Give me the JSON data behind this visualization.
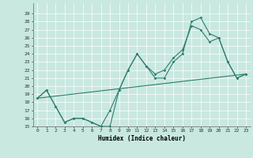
{
  "xlabel": "Humidex (Indice chaleur)",
  "xlim": [
    -0.5,
    23.5
  ],
  "ylim": [
    15,
    30
  ],
  "yticks": [
    15,
    16,
    17,
    18,
    19,
    20,
    21,
    22,
    23,
    24,
    25,
    26,
    27,
    28,
    29
  ],
  "xticks": [
    0,
    1,
    2,
    3,
    4,
    5,
    6,
    7,
    8,
    9,
    10,
    11,
    12,
    13,
    14,
    15,
    16,
    17,
    18,
    19,
    20,
    21,
    22,
    23
  ],
  "background_color": "#c8e8e0",
  "grid_color": "#ffffff",
  "line_color": "#2e7d6e",
  "series1_y": [
    18.5,
    19.5,
    17.5,
    15.5,
    16.0,
    16.0,
    15.5,
    15.0,
    15.0,
    19.5,
    22.0,
    24.0,
    22.5,
    21.0,
    21.0,
    23.0,
    24.0,
    28.0,
    28.5,
    26.5,
    26.0,
    23.0,
    21.0,
    21.5
  ],
  "series2_y": [
    18.5,
    19.5,
    17.5,
    15.5,
    16.0,
    16.0,
    15.5,
    15.0,
    17.0,
    19.5,
    22.0,
    24.0,
    22.5,
    21.5,
    22.0,
    23.5,
    24.5,
    27.5,
    27.0,
    25.5,
    26.0,
    23.0,
    21.0,
    21.5
  ],
  "series3_y": [
    18.5,
    21.5
  ]
}
